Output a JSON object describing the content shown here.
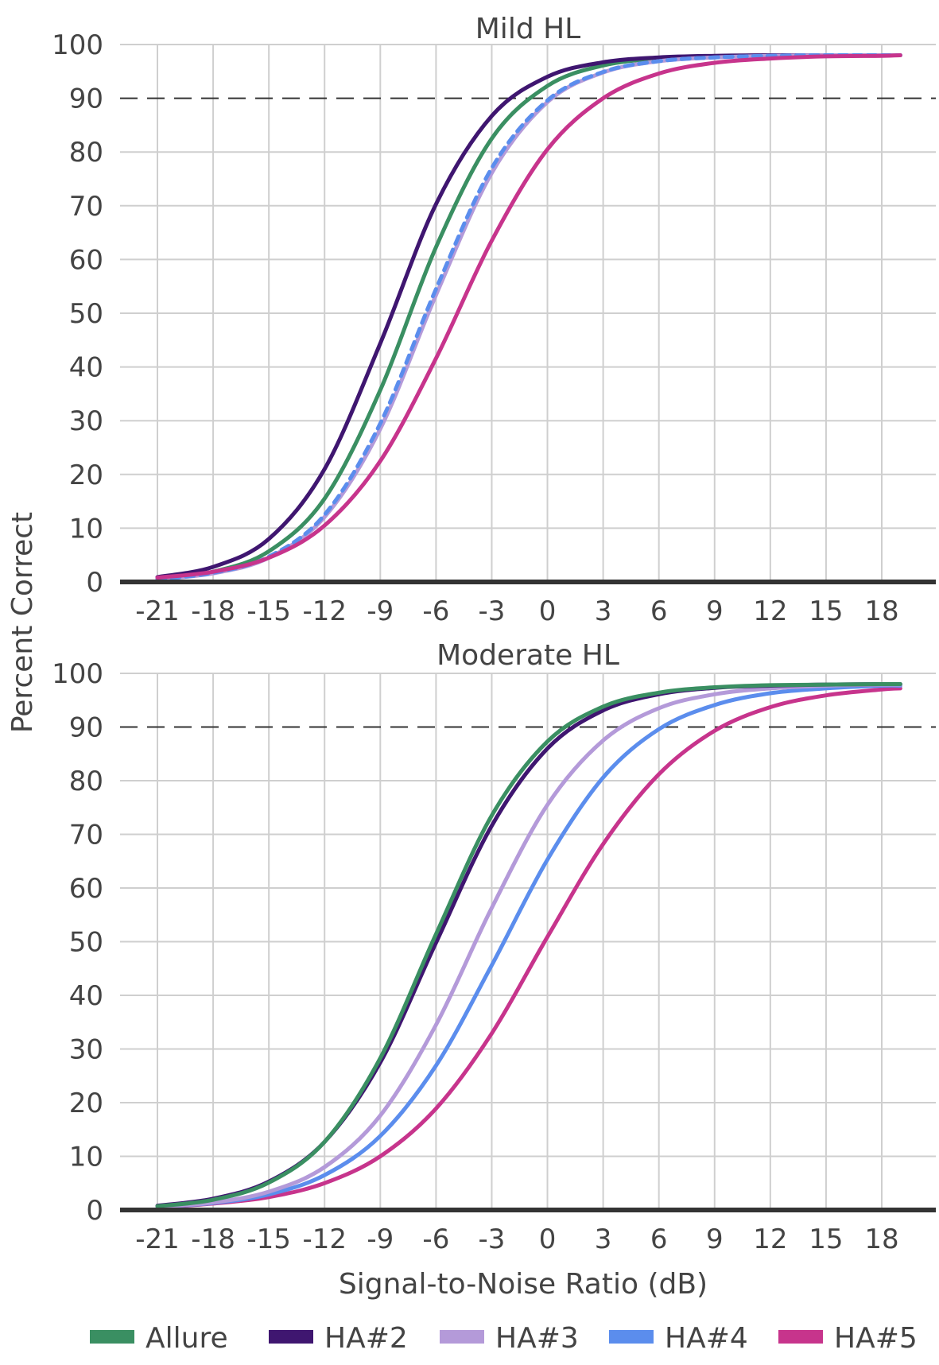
{
  "figure": {
    "ylabel": "Percent Correct",
    "xlabel": "Signal-to-Noise Ratio (dB)",
    "legend": {
      "placement": "bottom",
      "items": [
        {
          "label": "Allure",
          "color": "#3a8f62"
        },
        {
          "label": "HA#2",
          "color": "#3f1670"
        },
        {
          "label": "HA#3",
          "color": "#b49ad9"
        },
        {
          "label": "HA#4",
          "color": "#5b8ded"
        },
        {
          "label": "HA#5",
          "color": "#c7348c"
        }
      ]
    }
  },
  "chart_data": [
    {
      "type": "line",
      "title": "Mild HL",
      "xlabel": "Signal-to-Noise Ratio (dB)",
      "ylabel": "Percent Correct",
      "xlim": [
        -23,
        21
      ],
      "ylim": [
        0,
        100
      ],
      "x_ticks": [
        "-21",
        "-18",
        "-15",
        "-12",
        "-9",
        "-6",
        "-3",
        "0",
        "3",
        "6",
        "9",
        "12",
        "15",
        "18"
      ],
      "y_ticks": [
        "0",
        "10",
        "20",
        "30",
        "40",
        "50",
        "60",
        "70",
        "80",
        "90",
        "100"
      ],
      "grid": true,
      "reference_line": {
        "y": 90,
        "style": "dashed"
      },
      "x": [
        -21,
        -18,
        -15,
        -12,
        -9,
        -6,
        -3,
        0,
        3,
        6,
        9,
        12,
        15,
        18,
        19
      ],
      "series": [
        {
          "name": "Allure",
          "color": "#3a8f62",
          "style": "solid",
          "values": [
            0.6,
            1.9,
            5.7,
            15.5,
            35.7,
            62.3,
            82.5,
            92.3,
            96.1,
            97.4,
            97.8,
            97.9,
            98.0,
            98.0,
            98.0
          ]
        },
        {
          "name": "HA#2",
          "color": "#3f1670",
          "style": "solid",
          "values": [
            0.9,
            2.8,
            8.0,
            21.0,
            44.4,
            70.3,
            86.7,
            94.0,
            96.7,
            97.6,
            97.9,
            98.0,
            98.0,
            98.0,
            98.0
          ]
        },
        {
          "name": "HA#3",
          "color": "#b49ad9",
          "style": "solid",
          "values": [
            0.5,
            1.6,
            4.5,
            12.1,
            28.5,
            53.4,
            76.1,
            89.3,
            94.8,
            96.9,
            97.6,
            97.9,
            98.0,
            98.0,
            98.0
          ]
        },
        {
          "name": "HA#4",
          "color": "#5b8ded",
          "style": "dashed",
          "values": [
            0.5,
            1.7,
            4.7,
            12.5,
            29.5,
            54.5,
            77.0,
            89.6,
            94.9,
            96.9,
            97.6,
            97.9,
            98.0,
            98.0,
            98.0
          ]
        },
        {
          "name": "HA#5",
          "color": "#c7348c",
          "style": "solid",
          "values": [
            0.8,
            1.9,
            4.5,
            10.5,
            22.5,
            41.6,
            63.5,
            80.5,
            90.0,
            94.6,
            96.6,
            97.4,
            97.8,
            97.9,
            98.0
          ]
        }
      ]
    },
    {
      "type": "line",
      "title": "Moderate HL",
      "xlabel": "Signal-to-Noise Ratio (dB)",
      "ylabel": "Percent Correct",
      "xlim": [
        -23,
        21
      ],
      "ylim": [
        0,
        100
      ],
      "x_ticks": [
        "-21",
        "-18",
        "-15",
        "-12",
        "-9",
        "-6",
        "-3",
        "0",
        "3",
        "6",
        "9",
        "12",
        "15",
        "18"
      ],
      "y_ticks": [
        "0",
        "10",
        "20",
        "30",
        "40",
        "50",
        "60",
        "70",
        "80",
        "90",
        "100"
      ],
      "grid": true,
      "reference_line": {
        "y": 90,
        "style": "dashed"
      },
      "x": [
        -21,
        -18,
        -15,
        -12,
        -9,
        -6,
        -3,
        0,
        3,
        6,
        9,
        12,
        15,
        18,
        19
      ],
      "series": [
        {
          "name": "HA#5",
          "color": "#c7348c",
          "style": "solid",
          "values": [
            0.5,
            1.2,
            2.4,
            5.0,
            10.0,
            18.9,
            32.9,
            50.9,
            68.2,
            81.2,
            89.3,
            93.7,
            95.9,
            97.0,
            97.2
          ]
        },
        {
          "name": "HA#4",
          "color": "#5b8ded",
          "style": "solid",
          "values": [
            0.6,
            1.3,
            2.9,
            6.5,
            13.8,
            26.9,
            45.6,
            65.3,
            80.6,
            89.6,
            94.1,
            96.3,
            97.2,
            97.7,
            97.7
          ]
        },
        {
          "name": "HA#3",
          "color": "#b49ad9",
          "style": "solid",
          "values": [
            0.6,
            1.4,
            3.4,
            8.0,
            17.6,
            34.5,
            56.3,
            75.5,
            87.5,
            93.5,
            96.1,
            97.2,
            97.7,
            97.9,
            97.9
          ]
        },
        {
          "name": "HA#2",
          "color": "#3f1670",
          "style": "solid",
          "values": [
            0.8,
            2.1,
            5.3,
            12.7,
            27.5,
            49.8,
            71.6,
            86.0,
            93.1,
            96.1,
            97.3,
            97.7,
            97.9,
            98.0,
            98.0
          ]
        },
        {
          "name": "Allure",
          "color": "#3a8f62",
          "style": "solid",
          "values": [
            0.7,
            1.9,
            5.1,
            12.7,
            28.3,
            51.4,
            73.5,
            87.3,
            93.8,
            96.4,
            97.4,
            97.8,
            97.9,
            98.0,
            98.0
          ]
        }
      ]
    }
  ]
}
